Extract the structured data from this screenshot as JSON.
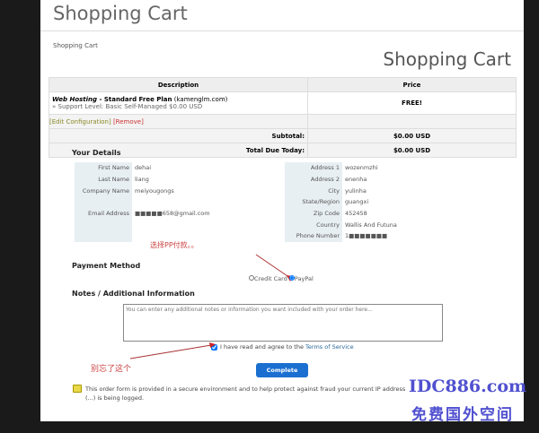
{
  "header": {
    "title": "Shopping Cart",
    "breadcrumb": "Shopping Cart",
    "heading": "Shopping Cart"
  },
  "cart": {
    "col_description": "Description",
    "col_price": "Price",
    "item_product": "Web Hosting",
    "item_plan": " - Standard Free Plan",
    "item_domain": " (kamenglm.com)",
    "item_option": "» Support Level: Basic Self-Managed $0.00 USD",
    "item_price": "FREE!",
    "edit_label": "[Edit Configuration]",
    "remove_label": "[Remove]",
    "subtotal_label": "Subtotal:",
    "subtotal": "$0.00 USD",
    "total_label": "Total Due Today:",
    "total": "$0.00 USD"
  },
  "details": {
    "title": "Your Details",
    "left": [
      {
        "label": "First Name",
        "value": "dehai"
      },
      {
        "label": "Last Name",
        "value": "liang"
      },
      {
        "label": "Company Name",
        "value": "meiyougongs"
      },
      {
        "label": "",
        "value": ""
      },
      {
        "label": "Email Address",
        "value": "■■■■■658@gmail.com"
      },
      {
        "label": "",
        "value": ""
      },
      {
        "label": "",
        "value": ""
      }
    ],
    "right": [
      {
        "label": "Address 1",
        "value": "wozenmzhi"
      },
      {
        "label": "Address 2",
        "value": "enenha"
      },
      {
        "label": "City",
        "value": "yulinha"
      },
      {
        "label": "State/Region",
        "value": "guangxi"
      },
      {
        "label": "Zip Code",
        "value": "452458"
      },
      {
        "label": "Country",
        "value": "Wallis And Futuna"
      },
      {
        "label": "Phone Number",
        "value": "1■■■■■■■"
      }
    ]
  },
  "annotations": {
    "choose_pp": "选择PP付款。。",
    "dont_forget": "别忘了这个"
  },
  "payment": {
    "title": "Payment Method",
    "credit_card": "Credit Card",
    "paypal": "PayPal",
    "selected": "PayPal"
  },
  "notes": {
    "title": "Notes / Additional Information",
    "placeholder": "You can enter any additional notes or information you want included with your order here..."
  },
  "tos": {
    "checked": true,
    "text": "I have read and agree to the ",
    "link": "Terms of Service"
  },
  "complete_button": "Complete Order",
  "security_note": "This order form is provided in a secure environment and to help protect against fraud your current IP address (...) is being logged.",
  "watermark": {
    "line1": "IDC886.com",
    "line2": "免费国外空间"
  },
  "colors": {
    "button": "#1a6fd0",
    "annotation": "#c44444",
    "watermark": "#5050d0"
  }
}
